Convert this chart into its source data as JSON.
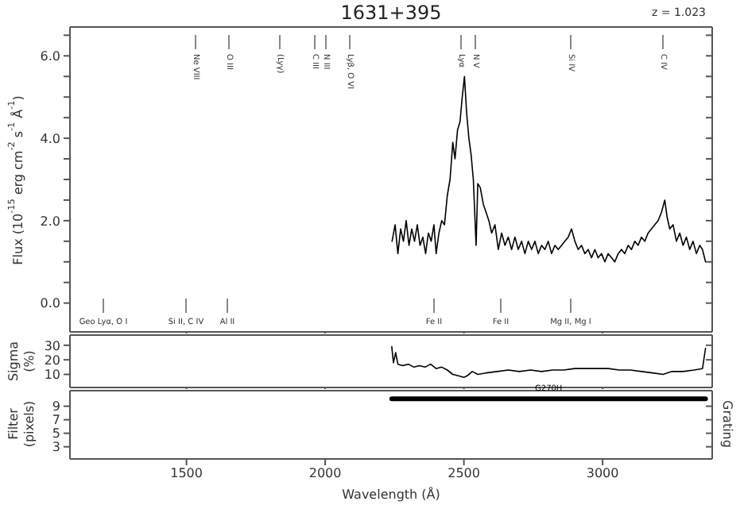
{
  "chart_data": [
    {
      "type": "line",
      "title": "1631+395",
      "ylabel": "Flux (10$^{-15}$ erg cm$^{-2}$ s$^{-1}$ Å$^{-1}$)",
      "marker": "none",
      "color": "#000000",
      "tick_labels": "y",
      "xlim": [
        1080,
        3395
      ],
      "xticks": [
        1500,
        2000,
        2500,
        3000
      ],
      "ylim": [
        -0.7,
        6.7
      ],
      "yticks": [
        {
          "value": 0,
          "label": "0.0"
        },
        {
          "value": 0.5,
          "label": null
        },
        {
          "value": 1,
          "label": null
        },
        {
          "value": 1.5,
          "label": null
        },
        {
          "value": 2,
          "label": "2.0"
        },
        {
          "value": 2.5,
          "label": null
        },
        {
          "value": 3,
          "label": null
        },
        {
          "value": 3.5,
          "label": null
        },
        {
          "value": 4,
          "label": "4.0"
        },
        {
          "value": 4.5,
          "label": null
        },
        {
          "value": 5,
          "label": null
        },
        {
          "value": 5.5,
          "label": null
        },
        {
          "value": 6,
          "label": "6.0"
        },
        {
          "value": 6.5,
          "label": null
        }
      ],
      "annotations": [
        "z = 1.023",
        "Ne VIII",
        "O III",
        "(Lyγ)",
        "C III",
        "N III",
        "Lyβ, O VI",
        "Lyα",
        "N V",
        "Si IV",
        "C IV",
        "Geo Lyα, O I",
        "Si II, C IV",
        "Al II",
        "Fe II",
        "Fe II",
        "Mg II, Mg I"
      ],
      "x": [
        2241,
        2252,
        2262,
        2272,
        2282,
        2292,
        2302,
        2312,
        2322,
        2332,
        2342,
        2352,
        2362,
        2372,
        2382,
        2392,
        2400,
        2410,
        2420,
        2430,
        2440,
        2450,
        2460,
        2468,
        2477,
        2486,
        2494,
        2502,
        2510,
        2518,
        2526,
        2534,
        2544,
        2550,
        2559,
        2570,
        2580,
        2590,
        2600,
        2612,
        2624,
        2636,
        2648,
        2660,
        2672,
        2684,
        2696,
        2708,
        2720,
        2732,
        2744,
        2756,
        2768,
        2780,
        2792,
        2804,
        2816,
        2828,
        2840,
        2852,
        2864,
        2876,
        2888,
        2900,
        2912,
        2924,
        2936,
        2948,
        2960,
        2972,
        2984,
        2996,
        3008,
        3020,
        3032,
        3044,
        3056,
        3068,
        3080,
        3092,
        3104,
        3116,
        3128,
        3140,
        3152,
        3164,
        3176,
        3188,
        3200,
        3212,
        3224,
        3232,
        3242,
        3254,
        3266,
        3278,
        3290,
        3302,
        3314,
        3326,
        3338,
        3350,
        3360,
        3371
      ],
      "values": [
        1.5,
        1.9,
        1.2,
        1.8,
        1.5,
        2.0,
        1.4,
        1.8,
        1.5,
        1.9,
        1.4,
        1.6,
        1.2,
        1.7,
        1.5,
        1.9,
        1.2,
        1.7,
        2.0,
        1.9,
        2.6,
        3.0,
        3.9,
        3.5,
        4.2,
        4.4,
        5.0,
        5.5,
        4.6,
        4.0,
        3.6,
        3.0,
        1.4,
        2.9,
        2.8,
        2.4,
        2.2,
        2.0,
        1.7,
        1.9,
        1.3,
        1.7,
        1.4,
        1.6,
        1.3,
        1.6,
        1.3,
        1.5,
        1.2,
        1.5,
        1.3,
        1.5,
        1.2,
        1.4,
        1.3,
        1.5,
        1.2,
        1.4,
        1.3,
        1.4,
        1.5,
        1.6,
        1.8,
        1.5,
        1.3,
        1.4,
        1.2,
        1.3,
        1.1,
        1.3,
        1.1,
        1.2,
        1.0,
        1.2,
        1.1,
        1.0,
        1.2,
        1.3,
        1.2,
        1.4,
        1.3,
        1.5,
        1.4,
        1.6,
        1.5,
        1.7,
        1.8,
        1.9,
        2.0,
        2.2,
        2.5,
        2.1,
        1.8,
        1.9,
        1.5,
        1.7,
        1.4,
        1.6,
        1.3,
        1.5,
        1.2,
        1.4,
        1.3,
        1.0
      ]
    },
    {
      "type": "line",
      "ylabel": "Sigma (%)",
      "marker": "none",
      "color": "#000000",
      "tick_labels": "y",
      "xlim": [
        1080,
        3395
      ],
      "xticks": [
        1500,
        2000,
        2500,
        3000
      ],
      "ylim": [
        1,
        37
      ],
      "yticks": [
        10,
        20,
        30
      ],
      "x": [
        2240,
        2246,
        2254,
        2262,
        2280,
        2300,
        2320,
        2340,
        2360,
        2380,
        2400,
        2420,
        2440,
        2460,
        2480,
        2500,
        2512,
        2530,
        2550,
        2580,
        2620,
        2660,
        2700,
        2740,
        2780,
        2820,
        2860,
        2900,
        2940,
        2980,
        3020,
        3060,
        3100,
        3140,
        3180,
        3218,
        3250,
        3290,
        3330,
        3360,
        3371
      ],
      "values": [
        29,
        18,
        25,
        17,
        16,
        17,
        15,
        16,
        15,
        17,
        14,
        15,
        13,
        10,
        9,
        8,
        9,
        12,
        10,
        11,
        12,
        13,
        12,
        13,
        12,
        13,
        13,
        14,
        14,
        14,
        14,
        13,
        13,
        12,
        11,
        10,
        12,
        12,
        13,
        14,
        28
      ]
    },
    {
      "type": "line",
      "ylabel": "Filter (pixels)",
      "y2label": "Grating",
      "xlabel": "Wavelength (Å)",
      "marker": "none",
      "xlim": [
        1080,
        3395
      ],
      "xticks": [
        1500,
        2000,
        2500,
        3000
      ],
      "ylim": [
        1.2,
        11.3
      ],
      "yticks": [
        3,
        5,
        7,
        9
      ],
      "series": [
        {
          "name": "G270H",
          "color": "#000000",
          "x": [
            2240,
            3371
          ],
          "values": [
            10.1,
            10.1
          ]
        }
      ]
    }
  ]
}
